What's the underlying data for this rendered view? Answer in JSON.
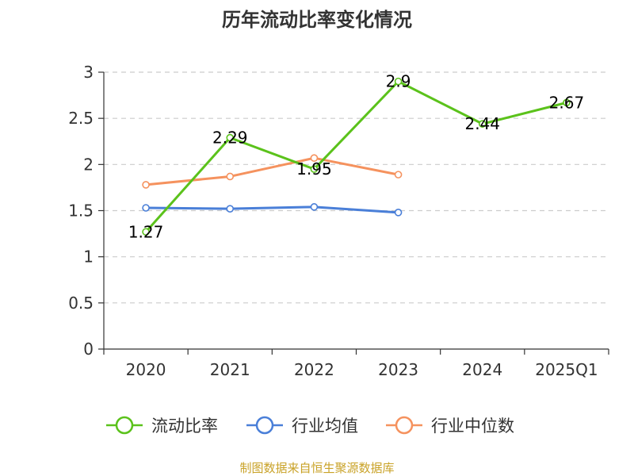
{
  "title": "历年流动比率变化情况",
  "source": "制图数据来自恒生聚源数据库",
  "chart_data": {
    "type": "line",
    "title": "历年流动比率变化情况",
    "categories": [
      "2020",
      "2021",
      "2022",
      "2023",
      "2024",
      "2025Q1"
    ],
    "ylim": [
      0,
      3
    ],
    "yticks": [
      "0",
      "0.5",
      "1",
      "1.5",
      "2",
      "2.5",
      "3"
    ],
    "grid": true,
    "legend_position": "bottom",
    "series": [
      {
        "name": "流动比率",
        "color": "#5bc21b",
        "values": [
          1.27,
          2.29,
          1.95,
          2.9,
          2.44,
          2.67
        ],
        "labels": [
          "1.27",
          "2.29",
          "1.95",
          "2.9",
          "2.44",
          "2.67"
        ]
      },
      {
        "name": "行业均值",
        "color": "#4a7fd8",
        "values": [
          1.53,
          1.52,
          1.54,
          1.48,
          null,
          null
        ]
      },
      {
        "name": "行业中位数",
        "color": "#f5925e",
        "values": [
          1.78,
          1.87,
          2.07,
          1.89,
          null,
          null
        ]
      }
    ]
  }
}
